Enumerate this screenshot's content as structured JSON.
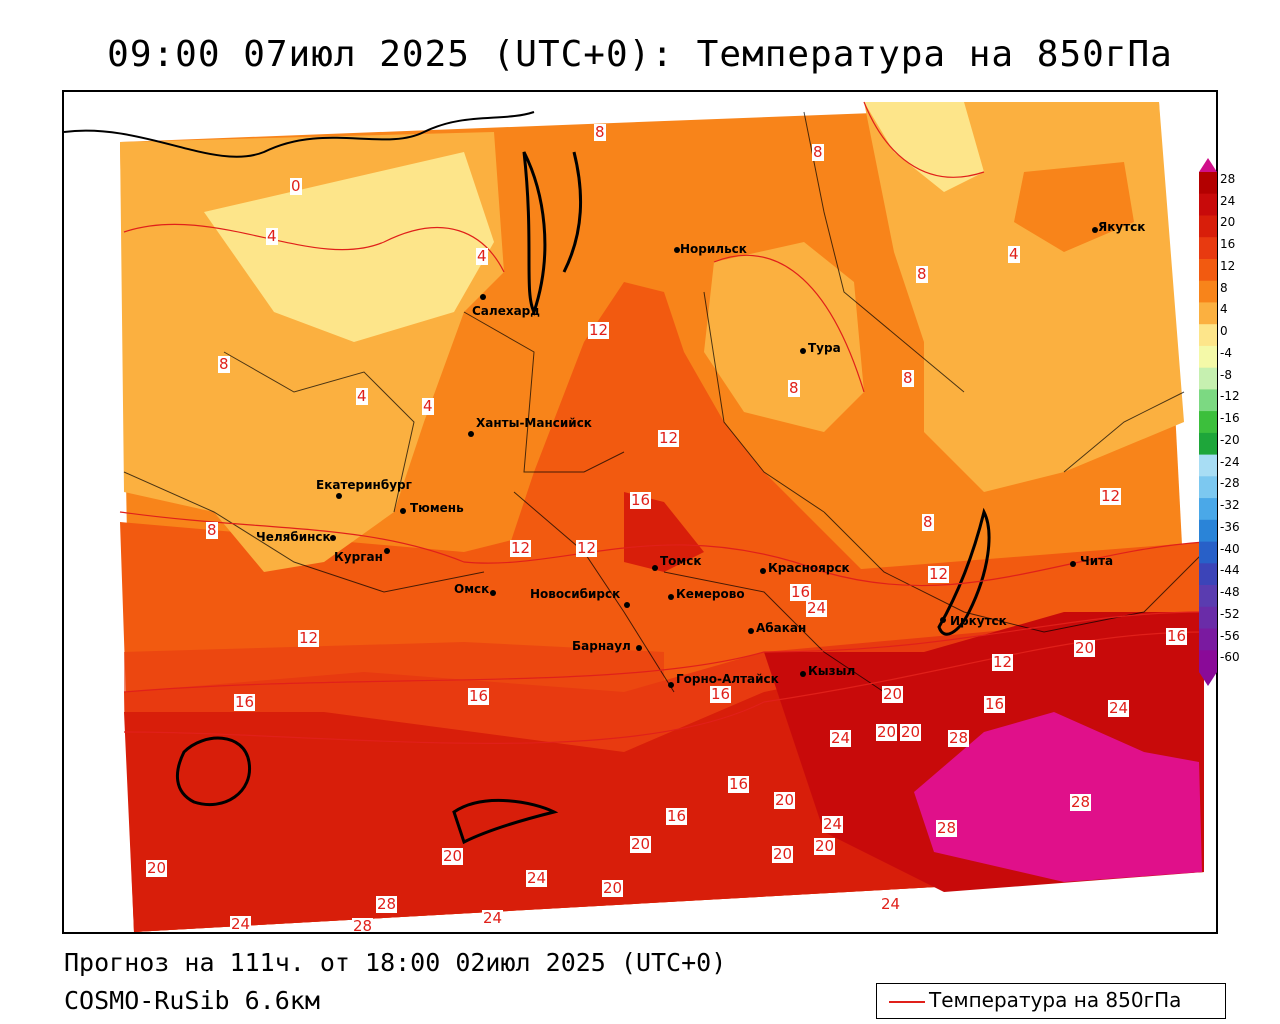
{
  "title": "09:00 07июл 2025 (UTC+0): Температура на 850гПа",
  "forecast_line": "Прогноз на 111ч. от 18:00 02июл 2025 (UTC+0)",
  "model_line": "COSMO-RuSib 6.6км",
  "legend": {
    "label": "Температура на 850гПа",
    "line_color": "#e0201a"
  },
  "colorbar": {
    "labels": [
      "28",
      "24",
      "20",
      "16",
      "12",
      "8",
      "4",
      "0",
      "-4",
      "-8",
      "-12",
      "-16",
      "-20",
      "-24",
      "-28",
      "-32",
      "-36",
      "-40",
      "-44",
      "-48",
      "-52",
      "-56",
      "-60"
    ],
    "colors": [
      "#b30000",
      "#c80a0a",
      "#d81e0a",
      "#e83a10",
      "#f25a10",
      "#f8841a",
      "#fbb040",
      "#fde58a",
      "#f4f9a8",
      "#c6f0b0",
      "#7cd982",
      "#3cbf3c",
      "#1ea63a",
      "#a8ddf4",
      "#7cc8f0",
      "#4aa8e8",
      "#2a84d8",
      "#2860c8",
      "#3c44b8",
      "#5a3cb0",
      "#6a2ca8",
      "#7a1aa0",
      "#8a0a98"
    ]
  },
  "cities": [
    {
      "name": "Норильск"
    },
    {
      "name": "Якутск"
    },
    {
      "name": "Салехард"
    },
    {
      "name": "Тура"
    },
    {
      "name": "Ханты-Мансийск"
    },
    {
      "name": "Екатеринбург"
    },
    {
      "name": "Тюмень"
    },
    {
      "name": "Челябинск"
    },
    {
      "name": "Курган"
    },
    {
      "name": "Омск"
    },
    {
      "name": "Новосибирск"
    },
    {
      "name": "Томск"
    },
    {
      "name": "Кемерово"
    },
    {
      "name": "Красноярск"
    },
    {
      "name": "Барнаул"
    },
    {
      "name": "Абакан"
    },
    {
      "name": "Горно-Алтайск"
    },
    {
      "name": "Кызыл"
    },
    {
      "name": "Иркутск"
    },
    {
      "name": "Чита"
    }
  ],
  "contour_labels": [
    "8",
    "8",
    "0",
    "4",
    "4",
    "8",
    "12",
    "8",
    "8",
    "4",
    "4",
    "8",
    "12",
    "12",
    "16",
    "12",
    "8",
    "8",
    "12",
    "16",
    "16",
    "24",
    "20",
    "16",
    "12",
    "16",
    "20",
    "12",
    "16",
    "20",
    "24",
    "24",
    "20",
    "28",
    "16",
    "20",
    "24",
    "20",
    "16",
    "20",
    "24",
    "20",
    "28",
    "28",
    "20",
    "24",
    "20",
    "24",
    "24",
    "28",
    "28",
    "20",
    "16",
    "12",
    "4"
  ]
}
